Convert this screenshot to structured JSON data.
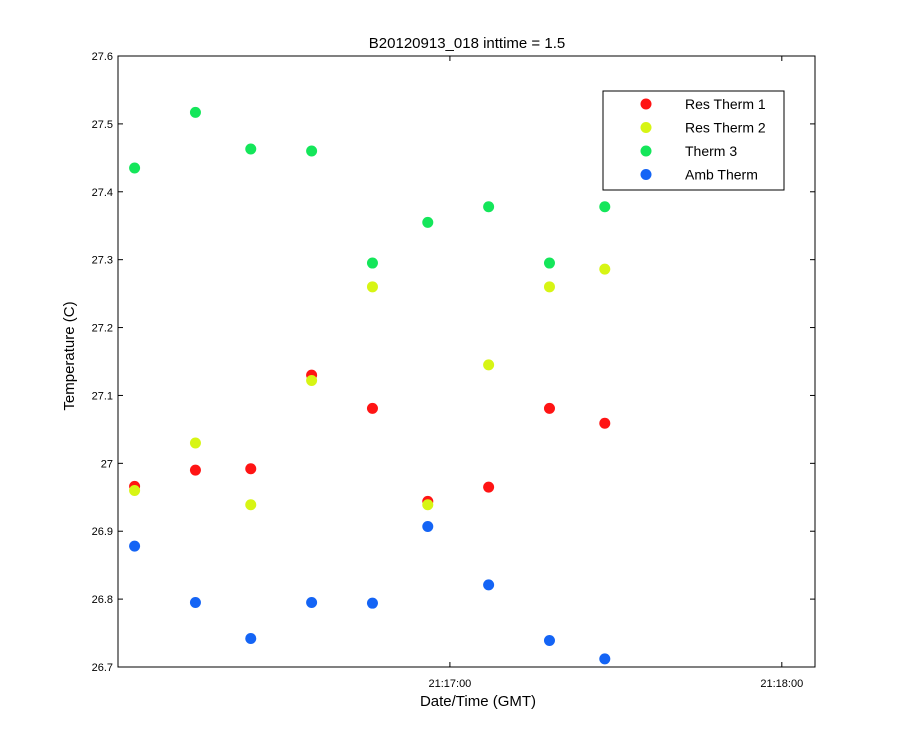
{
  "chart_data": {
    "type": "scatter",
    "title": "B20120913_018 inttime = 1.5",
    "xlabel": "Date/Time (GMT)",
    "ylabel": "Temperature (C)",
    "xlim": [
      "21:16:00",
      "21:18:06"
    ],
    "ylim": [
      26.7,
      27.6
    ],
    "x_ticks": [
      "21:17:00",
      "21:18:00"
    ],
    "y_ticks": [
      "26.7",
      "26.8",
      "26.9",
      "27",
      "27.1",
      "27.2",
      "27.3",
      "27.4",
      "27.5",
      "27.6"
    ],
    "grid": false,
    "legend_position": "top-right",
    "x": [
      "21:16:03",
      "21:16:14",
      "21:16:24",
      "21:16:35",
      "21:16:46",
      "21:16:56",
      "21:17:07",
      "21:17:18",
      "21:17:28",
      "21:17:39"
    ],
    "series": [
      {
        "name": "Res Therm 1",
        "color": "#ff1414",
        "values": [
          26.966,
          26.99,
          26.992,
          27.13,
          27.081,
          26.944,
          26.965,
          27.081,
          27.059,
          null
        ]
      },
      {
        "name": "Res Therm 2",
        "color": "#d7f514",
        "values": [
          26.96,
          27.03,
          26.939,
          27.122,
          27.26,
          26.939,
          27.145,
          27.26,
          27.286,
          null
        ]
      },
      {
        "name": "Therm 3",
        "color": "#14e65a",
        "values": [
          27.435,
          27.517,
          27.463,
          27.46,
          27.295,
          27.355,
          27.378,
          27.295,
          27.378,
          null
        ]
      },
      {
        "name": "Amb Therm",
        "color": "#1464f5",
        "values": [
          26.878,
          26.795,
          26.742,
          26.795,
          26.794,
          26.907,
          26.821,
          26.739,
          26.712,
          null
        ]
      }
    ]
  }
}
